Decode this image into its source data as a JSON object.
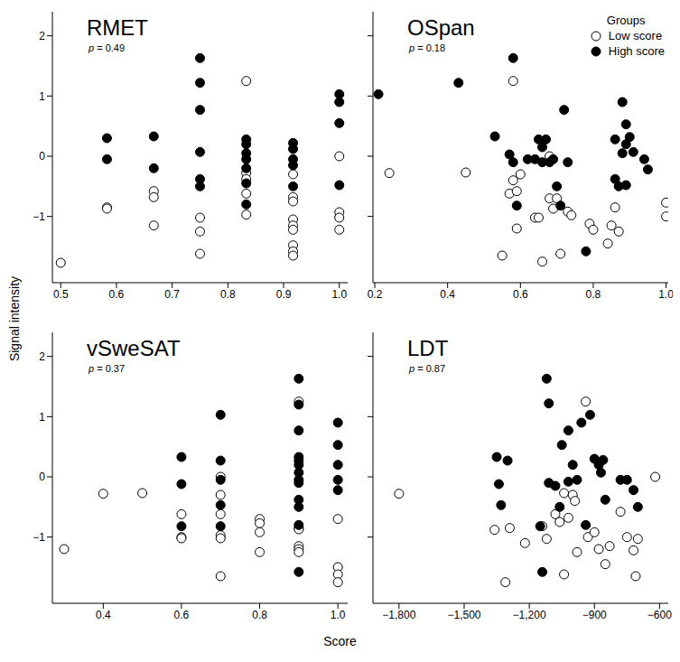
{
  "x_label": "Score",
  "y_label": "Signal intensity",
  "legend_title": "Groups",
  "chart_data": [
    {
      "type": "scatter",
      "title": "RMET",
      "annotation": "p = 0.49",
      "xlim": [
        0.485,
        1.015
      ],
      "xticks": [
        0.5,
        0.6,
        0.7,
        0.8,
        0.9,
        {
          "value": 1,
          "label": "1.0"
        }
      ],
      "ylim": [
        -2.1,
        2.4
      ],
      "yticks": [
        {
          "value": -1,
          "label": "−1"
        },
        0,
        1,
        2
      ],
      "series": [
        {
          "name": "Low score",
          "color": "#000000",
          "marker": "open circle",
          "x": [
            0.5,
            0.583,
            0.583,
            0.667,
            0.667,
            0.667,
            0.75,
            0.75,
            0.75,
            0.833,
            0.833,
            0.833,
            0.833,
            0.833,
            0.917,
            0.917,
            0.917,
            0.917,
            0.917,
            0.917,
            0.917,
            0.917,
            0.917,
            1,
            1,
            1,
            1
          ],
          "values": [
            -1.77,
            -0.85,
            -0.87,
            -0.58,
            -0.68,
            -1.15,
            -1.02,
            -1.25,
            -1.62,
            1.25,
            -0.28,
            -0.38,
            -0.62,
            -0.97,
            -0.3,
            -0.68,
            -0.75,
            -1.05,
            -1.15,
            -1.22,
            -1.48,
            -1.58,
            -1.65,
            0.0,
            -0.93,
            -1.02,
            -1.22
          ]
        },
        {
          "name": "High score",
          "color": "#000000",
          "marker": "filled circle",
          "x": [
            0.583,
            0.583,
            0.667,
            0.667,
            0.75,
            0.75,
            0.75,
            0.75,
            0.75,
            0.75,
            0.833,
            0.833,
            0.833,
            0.833,
            0.833,
            0.833,
            0.833,
            0.917,
            0.917,
            0.917,
            0.917,
            0.917,
            1,
            1,
            1,
            1
          ],
          "values": [
            0.3,
            -0.05,
            0.33,
            -0.2,
            1.63,
            1.22,
            0.77,
            0.07,
            -0.38,
            -0.5,
            0.28,
            0.2,
            0.05,
            -0.05,
            -0.2,
            -0.45,
            -0.8,
            0.22,
            0.12,
            -0.05,
            -0.15,
            -0.5,
            1.03,
            0.9,
            0.55,
            -0.48
          ]
        }
      ]
    },
    {
      "type": "scatter",
      "title": "OSpan",
      "annotation": "p = 0.18",
      "legend": "upper right",
      "tick_labels": "x",
      "xlim": [
        0.195,
        1.006
      ],
      "xticks": [
        0.2,
        0.4,
        0.6,
        0.8,
        {
          "value": 1,
          "label": "1.0"
        }
      ],
      "ylim": [
        -2.1,
        2.4
      ],
      "yticks": [
        -1,
        0,
        1,
        2
      ],
      "series": [
        {
          "name": "Low score",
          "color": "#000000",
          "marker": "open circle",
          "x": [
            0.24,
            0.45,
            0.55,
            0.57,
            0.58,
            0.59,
            0.58,
            0.59,
            0.6,
            0.64,
            0.65,
            0.66,
            0.68,
            0.68,
            0.69,
            0.7,
            0.71,
            0.73,
            0.74,
            0.79,
            0.8,
            0.84,
            0.85,
            0.86,
            0.87,
            1,
            1
          ],
          "values": [
            -0.28,
            -0.27,
            -1.65,
            -0.62,
            -0.4,
            -0.58,
            1.25,
            -1.2,
            -0.3,
            -1.02,
            -1.02,
            -1.75,
            -0.7,
            0.0,
            -0.87,
            -0.7,
            -1.62,
            -0.92,
            -0.98,
            -1.12,
            -1.22,
            -1.45,
            -1.15,
            -0.85,
            -1.25,
            -0.77,
            -1.0
          ]
        },
        {
          "name": "High score",
          "color": "#000000",
          "marker": "filled circle",
          "x": [
            0.21,
            0.43,
            0.53,
            0.57,
            0.58,
            0.58,
            0.59,
            0.62,
            0.64,
            0.65,
            0.66,
            0.66,
            0.67,
            0.68,
            0.69,
            0.7,
            0.71,
            0.72,
            0.73,
            0.78,
            0.86,
            0.86,
            0.87,
            0.88,
            0.88,
            0.89,
            0.89,
            0.89,
            0.9,
            0.91,
            0.94,
            0.95
          ],
          "values": [
            1.03,
            1.22,
            0.33,
            0.03,
            1.63,
            -0.1,
            -0.82,
            -0.05,
            -0.05,
            0.28,
            0.15,
            -0.1,
            0.28,
            -0.1,
            -0.05,
            -0.5,
            -0.82,
            0.77,
            -0.1,
            -1.58,
            0.28,
            -0.38,
            -0.5,
            0.9,
            0.05,
            0.53,
            0.2,
            -0.48,
            0.32,
            0.07,
            -0.05,
            -0.22
          ]
        }
      ]
    },
    {
      "type": "scatter",
      "title": "vSweSAT",
      "annotation": "p = 0.37",
      "xlim": [
        0.27,
        1.025
      ],
      "xticks": [
        0.4,
        0.6,
        0.8,
        {
          "value": 1,
          "label": "1.0"
        }
      ],
      "ylim": [
        -2.1,
        2.4
      ],
      "yticks": [
        {
          "value": -1,
          "label": "−1"
        },
        0,
        1,
        2
      ],
      "series": [
        {
          "name": "Low score",
          "color": "#000000",
          "marker": "open circle",
          "x": [
            0.3,
            0.4,
            0.5,
            0.6,
            0.6,
            0.6,
            0.7,
            0.7,
            0.7,
            0.7,
            0.7,
            0.7,
            0.8,
            0.8,
            0.8,
            0.8,
            0.9,
            0.9,
            0.9,
            0.9,
            0.9,
            0.9,
            1,
            1,
            1,
            1
          ],
          "values": [
            -1.2,
            -0.28,
            -0.27,
            -0.62,
            -1.0,
            -1.02,
            0.0,
            -0.3,
            -0.62,
            -0.97,
            -1.02,
            -1.65,
            -0.7,
            -0.77,
            -0.92,
            -1.25,
            1.25,
            -0.85,
            -0.87,
            -1.15,
            -1.2,
            -1.25,
            -0.7,
            -1.5,
            -1.62,
            -1.75
          ]
        },
        {
          "name": "High score",
          "color": "#000000",
          "marker": "filled circle",
          "x": [
            0.6,
            0.6,
            0.6,
            0.7,
            0.7,
            0.7,
            0.7,
            0.7,
            0.9,
            0.9,
            0.9,
            0.9,
            0.9,
            0.9,
            0.9,
            0.9,
            0.9,
            0.9,
            0.9,
            0.9,
            0.9,
            1,
            1,
            1,
            1,
            1
          ],
          "values": [
            0.33,
            -0.12,
            -0.82,
            1.03,
            0.27,
            -0.05,
            -0.47,
            -0.82,
            1.63,
            1.2,
            0.77,
            0.33,
            0.27,
            0.2,
            0.07,
            -0.05,
            -0.1,
            -0.38,
            -0.5,
            -0.8,
            -1.58,
            0.9,
            0.53,
            0.2,
            -0.05,
            -0.22
          ]
        }
      ]
    },
    {
      "type": "scatter",
      "title": "LDT",
      "annotation": "p = 0.87",
      "tick_labels": "x",
      "xlim": [
        -1920,
        -560
      ],
      "xticks": [
        {
          "value": -1800,
          "label": "−1,800"
        },
        {
          "value": -1500,
          "label": "−1,500"
        },
        {
          "value": -1200,
          "label": "−1,200"
        },
        {
          "value": -900,
          "label": "−900"
        },
        {
          "value": -600,
          "label": "−600"
        }
      ],
      "ylim": [
        -2.1,
        2.4
      ],
      "yticks": [
        -1,
        0,
        1,
        2
      ],
      "series": [
        {
          "name": "Low score",
          "color": "#000000",
          "marker": "open circle",
          "x": [
            -1800,
            -1360,
            -1310,
            -1290,
            -1220,
            -1140,
            -1120,
            -1080,
            -1060,
            -1040,
            -1040,
            -1020,
            -1000,
            -990,
            -980,
            -940,
            -930,
            -900,
            -880,
            -850,
            -830,
            -780,
            -750,
            -710,
            -720,
            -700,
            -620
          ],
          "values": [
            -0.28,
            -0.88,
            -1.75,
            -0.85,
            -1.1,
            -0.82,
            -1.03,
            -0.62,
            -0.75,
            -0.27,
            -1.62,
            -0.68,
            -0.3,
            -0.4,
            -1.25,
            1.25,
            -1.0,
            -0.92,
            -1.2,
            -1.45,
            -1.15,
            -0.58,
            -1.0,
            -1.65,
            -1.22,
            -1.03,
            0.0
          ]
        },
        {
          "name": "High score",
          "color": "#000000",
          "marker": "filled circle",
          "x": [
            -1350,
            -1340,
            -1330,
            -1300,
            -1150,
            -1140,
            -1120,
            -1110,
            -1110,
            -1080,
            -1060,
            -1050,
            -1020,
            -1000,
            -980,
            -960,
            -940,
            -920,
            -900,
            -880,
            -870,
            -860,
            -850,
            -780,
            -750,
            -720,
            -700,
            -1020
          ],
          "values": [
            0.33,
            -0.12,
            -0.47,
            0.27,
            -0.82,
            -1.58,
            1.63,
            1.22,
            -0.1,
            -0.15,
            -0.5,
            0.53,
            -0.08,
            0.2,
            -0.05,
            0.9,
            -0.8,
            1.03,
            0.3,
            0.2,
            0.07,
            0.28,
            -0.38,
            -0.05,
            -0.05,
            -0.22,
            -0.5,
            0.77
          ]
        }
      ]
    }
  ]
}
